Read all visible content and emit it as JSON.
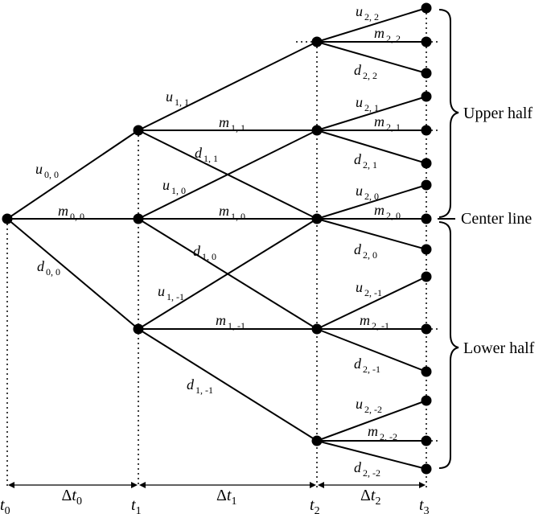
{
  "tree": {
    "nodes": [
      {
        "id": "n0_0"
      },
      {
        "id": "n1_1"
      },
      {
        "id": "n1_0"
      },
      {
        "id": "n1_m1"
      },
      {
        "id": "n2_2"
      },
      {
        "id": "n2_1"
      },
      {
        "id": "n2_0"
      },
      {
        "id": "n2_m1"
      },
      {
        "id": "n2_m2"
      },
      {
        "id": "n3_4"
      },
      {
        "id": "n3_3"
      },
      {
        "id": "n3_2"
      },
      {
        "id": "n3_1"
      },
      {
        "id": "n3_0"
      },
      {
        "id": "n3_m1"
      },
      {
        "id": "n3_m2"
      },
      {
        "id": "n3_m3"
      },
      {
        "id": "n3_m4"
      }
    ],
    "edges": [
      {
        "from": "n0_0",
        "to": "n1_1",
        "var": "u",
        "sub": "0, 0"
      },
      {
        "from": "n0_0",
        "to": "n1_0",
        "var": "m",
        "sub": "0, 0"
      },
      {
        "from": "n0_0",
        "to": "n1_m1",
        "var": "d",
        "sub": "0, 0"
      },
      {
        "from": "n1_1",
        "to": "n2_2",
        "var": "u",
        "sub": "1, 1"
      },
      {
        "from": "n1_1",
        "to": "n2_1",
        "var": "m",
        "sub": "1, 1"
      },
      {
        "from": "n1_1",
        "to": "n2_0",
        "var": "d",
        "sub": "1, 1"
      },
      {
        "from": "n1_0",
        "to": "n2_1",
        "var": "u",
        "sub": "1, 0"
      },
      {
        "from": "n1_0",
        "to": "n2_0",
        "var": "m",
        "sub": "1, 0"
      },
      {
        "from": "n1_0",
        "to": "n2_m1",
        "var": "d",
        "sub": "1, 0"
      },
      {
        "from": "n1_m1",
        "to": "n2_0",
        "var": "u",
        "sub": "1, -1"
      },
      {
        "from": "n1_m1",
        "to": "n2_m1",
        "var": "m",
        "sub": "1, -1"
      },
      {
        "from": "n1_m1",
        "to": "n2_m2",
        "var": "d",
        "sub": "1, -1"
      },
      {
        "from": "n2_2",
        "to": "n3_4",
        "var": "u",
        "sub": "2, 2"
      },
      {
        "from": "n2_2",
        "to": "n3_3",
        "var": "m",
        "sub": "2, 2"
      },
      {
        "from": "n2_2",
        "to": "n3_2",
        "var": "d",
        "sub": "2, 2"
      },
      {
        "from": "n2_1",
        "to": "n3_2",
        "var": "u",
        "sub": "2, 1"
      },
      {
        "from": "n2_1",
        "to": "n3_1",
        "var": "m",
        "sub": "2, 1"
      },
      {
        "from": "n2_1",
        "to": "n3_0",
        "var": "d",
        "sub": "2, 1"
      },
      {
        "from": "n2_0",
        "to": "n3_0",
        "var": "u",
        "sub": "2, 0"
      },
      {
        "from": "n2_0",
        "to": "n3_m1",
        "var": "m",
        "sub": "2, 0"
      },
      {
        "from": "n2_0",
        "to": "n3_m2",
        "var": "d",
        "sub": "2, 0"
      },
      {
        "from": "n2_m1",
        "to": "n3_m2",
        "var": "u",
        "sub": "2, -1"
      },
      {
        "from": "n2_m1",
        "to": "n3_m3",
        "var": "m",
        "sub": "2, -1"
      },
      {
        "from": "n2_m1",
        "to": "n3_m4",
        "var": "d",
        "sub": "2, -1"
      },
      {
        "from": "n2_m2",
        "to": "n3_m4",
        "var": "u",
        "sub": "2, -2"
      },
      {
        "from": "n2_m2",
        "to": "n3_m4b",
        "var": "m",
        "sub": "2, -2"
      },
      {
        "from": "n2_m2",
        "to": "n3_m4c",
        "var": "d",
        "sub": "2, -2"
      }
    ]
  },
  "time_axis": {
    "points": [
      {
        "var": "t",
        "sub": "0"
      },
      {
        "var": "t",
        "sub": "1"
      },
      {
        "var": "t",
        "sub": "2"
      },
      {
        "var": "t",
        "sub": "3"
      }
    ],
    "intervals": [
      {
        "var": "Δt",
        "sub": "0"
      },
      {
        "var": "Δt",
        "sub": "1"
      },
      {
        "var": "Δt",
        "sub": "2"
      }
    ]
  },
  "regions": {
    "upper": "Upper half",
    "center": "Center line",
    "lower": "Lower half"
  }
}
